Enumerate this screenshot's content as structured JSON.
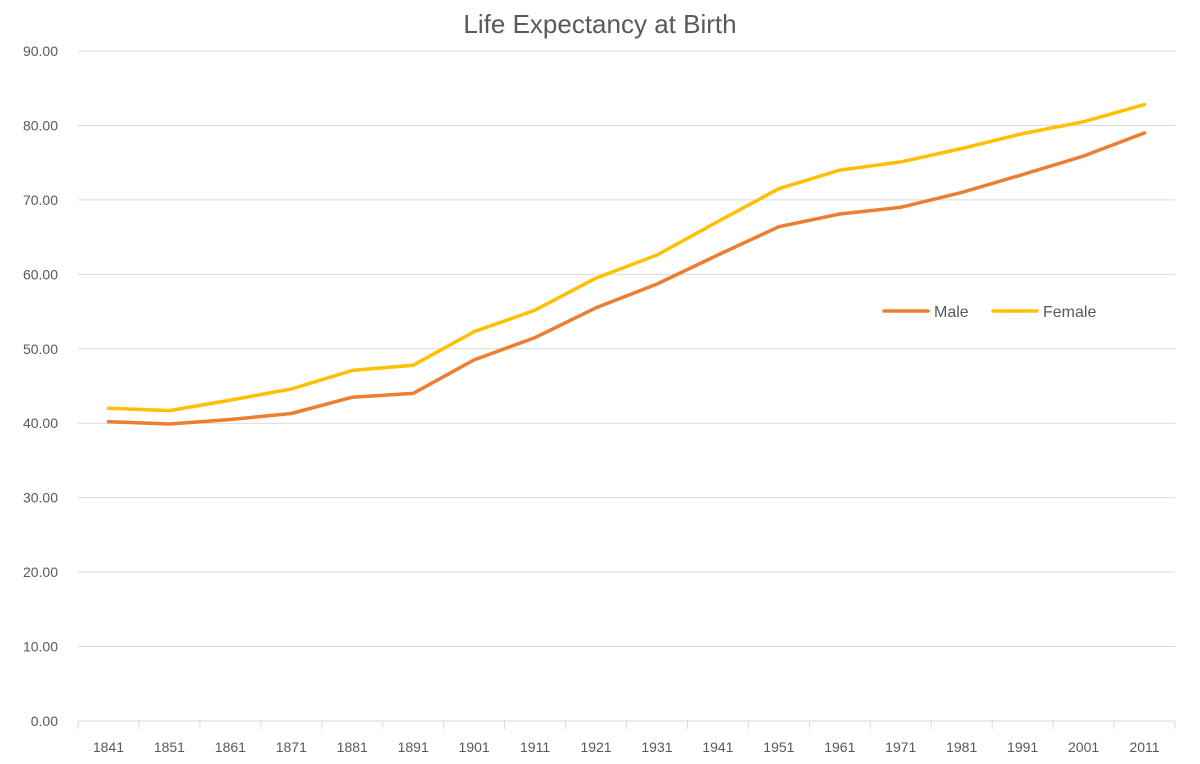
{
  "chart_data": {
    "type": "line",
    "title": "Life Expectancy at Birth",
    "xlabel": "",
    "ylabel": "",
    "categories": [
      "1841",
      "1851",
      "1861",
      "1871",
      "1881",
      "1891",
      "1901",
      "1911",
      "1921",
      "1931",
      "1941",
      "1951",
      "1961",
      "1971",
      "1981",
      "1991",
      "2001",
      "2011"
    ],
    "ylim": [
      0,
      90
    ],
    "yticks": [
      "0.00",
      "10.00",
      "20.00",
      "30.00",
      "40.00",
      "50.00",
      "60.00",
      "70.00",
      "80.00",
      "90.00"
    ],
    "grid": true,
    "legend_position": "right",
    "series": [
      {
        "name": "Male",
        "color": "#ed7d31",
        "values": [
          40.2,
          39.9,
          40.5,
          41.3,
          43.5,
          44.0,
          48.5,
          51.5,
          55.5,
          58.7,
          62.6,
          66.4,
          68.1,
          69.0,
          71.0,
          73.4,
          75.9,
          79.0
        ]
      },
      {
        "name": "Female",
        "color": "#ffc000",
        "values": [
          42.0,
          41.7,
          43.1,
          44.6,
          47.1,
          47.8,
          52.3,
          55.2,
          59.5,
          62.6,
          67.1,
          71.5,
          74.0,
          75.1,
          76.9,
          78.9,
          80.5,
          82.8
        ]
      }
    ]
  }
}
